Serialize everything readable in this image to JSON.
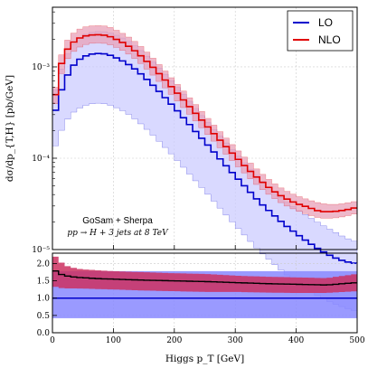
{
  "chart_data": [
    {
      "type": "line",
      "panel": "main",
      "ylabel": "dσ/dp_{T,H} [pb/GeV]",
      "yscale": "log",
      "ylim": [
        1e-05,
        0.0045
      ],
      "xlim": [
        0,
        500
      ],
      "grid": true,
      "yticks": [
        {
          "value": 1e-05,
          "label": "10⁻⁵"
        },
        {
          "value": 0.0001,
          "label": "10⁻⁴"
        },
        {
          "value": 0.001,
          "label": "10⁻³"
        }
      ],
      "legend": {
        "placement": "top-right"
      },
      "annotations": [
        "GoSam + Sherpa",
        "pp → H + 3 jets at 8 TeV"
      ],
      "series": [
        {
          "name": "LO",
          "color": "#0000cc",
          "band_color": "#c9c9ff",
          "x": [
            0,
            10,
            20,
            30,
            40,
            50,
            60,
            70,
            80,
            90,
            100,
            120,
            140,
            160,
            180,
            200,
            220,
            240,
            260,
            280,
            300,
            320,
            340,
            360,
            380,
            400,
            420,
            440,
            460,
            480,
            500
          ],
          "central": [
            0.00025,
            0.00045,
            0.0007,
            0.00095,
            0.00115,
            0.00128,
            0.00136,
            0.0014,
            0.0014,
            0.00138,
            0.0013,
            0.00112,
            0.0009,
            0.00068,
            0.0005,
            0.00036,
            0.000255,
            0.00018,
            0.000128,
            9e-05,
            6.4e-05,
            4.6e-05,
            3.3e-05,
            2.5e-05,
            1.9e-05,
            1.5e-05,
            1.2e-05,
            9.8e-06,
            8.3e-06,
            7.4e-06,
            7e-06
          ],
          "upper": [
            0.00042,
            0.00075,
            0.0012,
            0.0016,
            0.00195,
            0.0022,
            0.00235,
            0.00242,
            0.00245,
            0.0024,
            0.0023,
            0.002,
            0.00162,
            0.00122,
            0.0009,
            0.00065,
            0.00046,
            0.00032,
            0.000225,
            0.00016,
            0.000114,
            8.2e-05,
            6e-05,
            4.5e-05,
            3.5e-05,
            2.8e-05,
            2.3e-05,
            1.9e-05,
            1.6e-05,
            1.35e-05,
            1.2e-05
          ],
          "lower": [
            0.00011,
            0.00017,
            0.00024,
            0.0003,
            0.00034,
            0.00037,
            0.00039,
            0.0004,
            0.0004,
            0.00039,
            0.00037,
            0.00032,
            0.000255,
            0.000193,
            0.000142,
            0.000103,
            7.3e-05,
            5.2e-05,
            3.7e-05,
            2.6e-05,
            1.85e-05,
            1.33e-05,
            9.6e-06,
            7.3e-06,
            5.6e-06,
            4.4e-06,
            3.6e-06,
            3e-06,
            2.6e-06,
            2.3e-06,
            2.1e-06
          ]
        },
        {
          "name": "NLO",
          "color": "#e00000",
          "band_color": "#e8a0b8",
          "x": [
            0,
            10,
            20,
            30,
            40,
            50,
            60,
            70,
            80,
            90,
            100,
            120,
            140,
            160,
            180,
            200,
            220,
            240,
            260,
            280,
            300,
            320,
            340,
            360,
            380,
            400,
            420,
            440,
            460,
            480,
            500
          ],
          "central": [
            0.00029,
            0.00085,
            0.0014,
            0.00175,
            0.002,
            0.00215,
            0.00222,
            0.00225,
            0.00225,
            0.0022,
            0.00208,
            0.00178,
            0.00142,
            0.00107,
            0.00078,
            0.00056,
            0.0004,
            0.000285,
            0.000202,
            0.000145,
            0.000105,
            7.7e-05,
            5.8e-05,
            4.5e-05,
            3.7e-05,
            3.2e-05,
            2.9e-05,
            2.6e-05,
            2.6e-05,
            2.7e-05,
            2.9e-05
          ],
          "upper": [
            0.00034,
            0.00105,
            0.00175,
            0.0022,
            0.0025,
            0.0027,
            0.0028,
            0.00283,
            0.00283,
            0.00278,
            0.00262,
            0.00224,
            0.0018,
            0.00135,
            0.00098,
            0.0007,
            0.0005,
            0.000355,
            0.00025,
            0.00018,
            0.00013,
            9.5e-05,
            7.1e-05,
            5.5e-05,
            4.5e-05,
            3.9e-05,
            3.5e-05,
            3.2e-05,
            3.1e-05,
            3.2e-05,
            3.4e-05
          ],
          "lower": [
            0.00024,
            0.00065,
            0.0011,
            0.00138,
            0.00158,
            0.00172,
            0.0018,
            0.00183,
            0.00183,
            0.00179,
            0.0017,
            0.00146,
            0.00117,
            0.00088,
            0.00064,
            0.00046,
            0.00033,
            0.000235,
            0.000167,
            0.00012,
            8.7e-05,
            6.4e-05,
            4.8e-05,
            3.8e-05,
            3.1e-05,
            2.7e-05,
            2.4e-05,
            2.2e-05,
            2.2e-05,
            2.3e-05,
            2.5e-05
          ]
        }
      ]
    },
    {
      "type": "line",
      "panel": "ratio",
      "xlabel": "Higgs p_T [GeV]",
      "xlim": [
        0,
        500
      ],
      "ylim": [
        0,
        2.3
      ],
      "grid": true,
      "xticks": [
        0,
        100,
        200,
        300,
        400,
        500
      ],
      "yticks": [
        {
          "value": 0.0,
          "label": "0.0"
        },
        {
          "value": 0.5,
          "label": "0.5"
        },
        {
          "value": 1.0,
          "label": "1.0"
        },
        {
          "value": 1.5,
          "label": "1.5"
        },
        {
          "value": 2.0,
          "label": "2.0"
        }
      ],
      "lo_band": {
        "color": "#8888ff",
        "x": [
          0,
          500
        ],
        "upper": [
          1.78,
          1.78
        ],
        "lower": [
          0.42,
          0.42
        ],
        "central": [
          1.0,
          1.0
        ]
      },
      "nlo_ratio": {
        "color": "#000000",
        "band_color": "#cc3060",
        "x": [
          0,
          10,
          20,
          40,
          60,
          80,
          100,
          150,
          200,
          250,
          300,
          350,
          400,
          450,
          500
        ],
        "central": [
          1.85,
          1.72,
          1.65,
          1.6,
          1.58,
          1.56,
          1.55,
          1.52,
          1.5,
          1.48,
          1.45,
          1.42,
          1.4,
          1.38,
          1.45
        ],
        "upper": [
          2.3,
          2.1,
          1.95,
          1.85,
          1.82,
          1.8,
          1.78,
          1.75,
          1.72,
          1.7,
          1.65,
          1.62,
          1.6,
          1.58,
          1.7
        ],
        "lower": [
          1.35,
          1.3,
          1.28,
          1.28,
          1.27,
          1.26,
          1.25,
          1.22,
          1.2,
          1.18,
          1.18,
          1.16,
          1.15,
          1.15,
          1.2
        ]
      }
    }
  ]
}
